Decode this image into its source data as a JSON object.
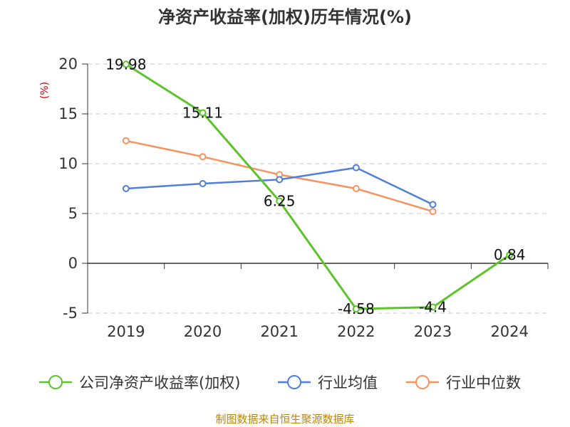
{
  "title": "净资产收益率(加权)历年情况(%)",
  "source": "制图数据来自恒生聚源数据库",
  "chart_data": {
    "type": "line",
    "title": "净资产收益率(加权)历年情况(%)",
    "ylabel": "(%)",
    "xlabel": "",
    "categories": [
      "2019",
      "2020",
      "2021",
      "2022",
      "2023",
      "2024"
    ],
    "ylim": [
      -5,
      20
    ],
    "yticks": [
      -5,
      0,
      5,
      10,
      15,
      20
    ],
    "grid": true,
    "legend_position": "bottom",
    "series": [
      {
        "name": "公司净资产收益率(加权)",
        "color": "#5cc32b",
        "values": [
          19.98,
          15.11,
          6.25,
          -4.58,
          -4.4,
          0.84
        ],
        "labels": [
          "19.98",
          "15.11",
          "6.25",
          "-4.58",
          "-4.4",
          "0.84"
        ]
      },
      {
        "name": "行业均值",
        "color": "#4f7fd8",
        "values": [
          7.5,
          8.0,
          8.4,
          9.6,
          5.9,
          null
        ]
      },
      {
        "name": "行业中位数",
        "color": "#f5925e",
        "values": [
          12.3,
          10.7,
          8.9,
          7.5,
          5.2,
          null
        ]
      }
    ]
  }
}
